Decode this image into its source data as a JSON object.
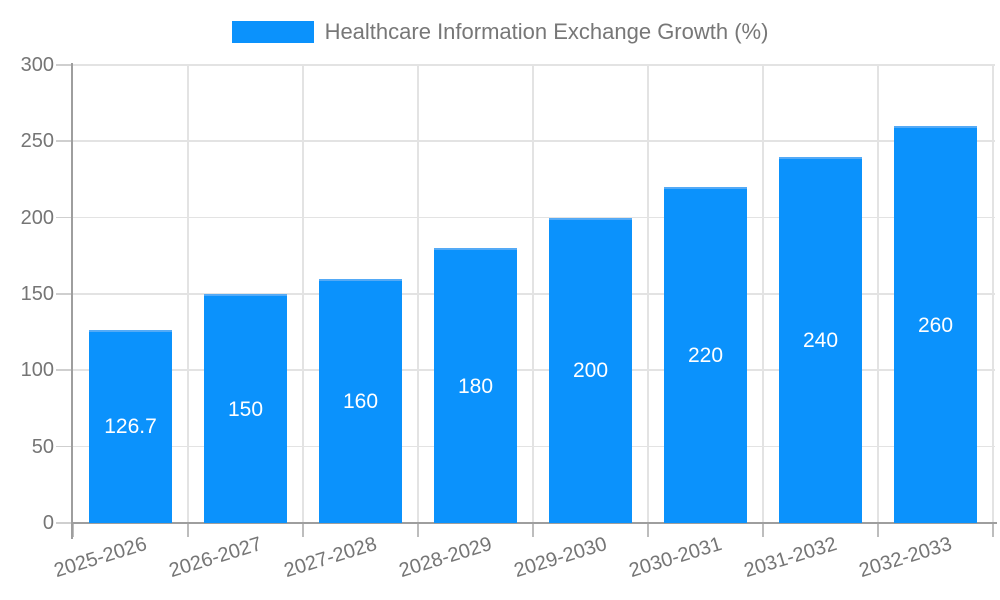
{
  "chart_data": {
    "type": "bar",
    "title": "Healthcare Information Exchange Growth (%)",
    "legend": {
      "position": "top-center",
      "entries": [
        "Healthcare Information Exchange Growth (%)"
      ]
    },
    "categories": [
      "2025-2026",
      "2026-2027",
      "2027-2028",
      "2028-2029",
      "2029-2030",
      "2030-2031",
      "2031-2032",
      "2032-2033"
    ],
    "values": [
      126.7,
      150,
      160,
      180,
      200,
      220,
      240,
      260
    ],
    "value_labels": [
      "126.7",
      "150",
      "160",
      "180",
      "200",
      "220",
      "240",
      "260"
    ],
    "xlabel": "",
    "ylabel": "",
    "ylim": [
      0,
      300
    ],
    "yticks": [
      0,
      50,
      100,
      150,
      200,
      250,
      300
    ],
    "grid": true,
    "colors": {
      "bar": "#0b92fc",
      "bar_top_edge": "#54aaf6",
      "grid": "#e3e3e3",
      "axis": "#9e9e9e",
      "y_tick_mark": "#cfcfcf",
      "x_tick_mark": "#bdbdbd",
      "tick_label_text": "#757575",
      "value_label_text": "#ffffff",
      "legend_text": "#777777",
      "background": "#ffffff"
    }
  }
}
